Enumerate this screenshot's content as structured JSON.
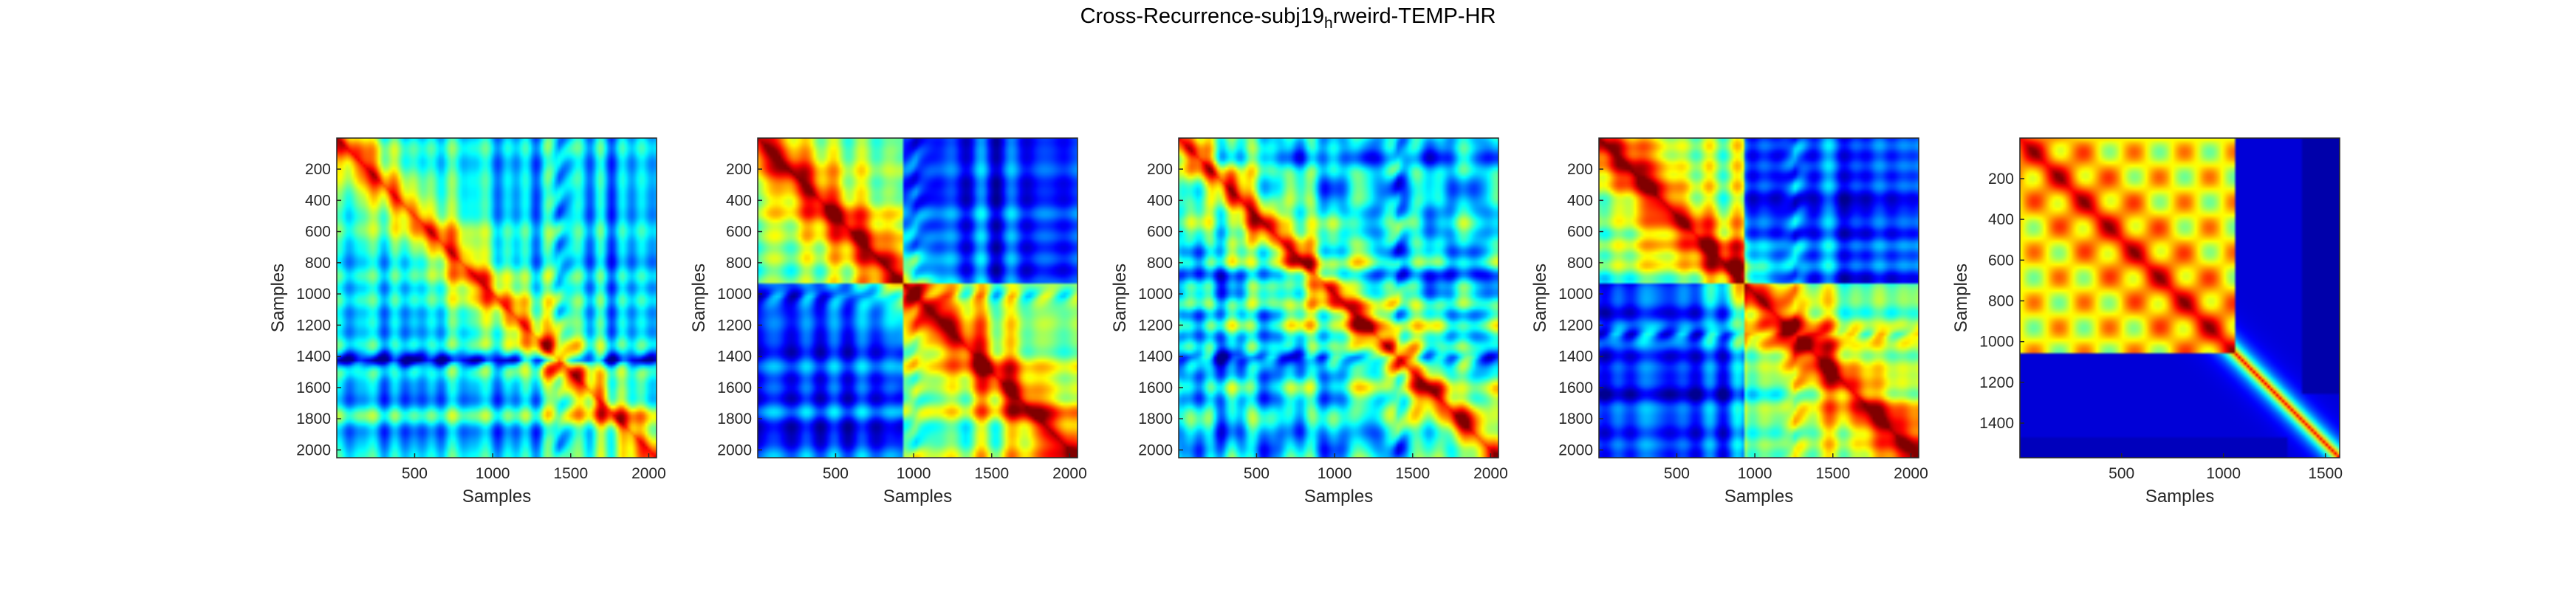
{
  "figure": {
    "title_main": "Cross-Recurrence-subj19",
    "title_sub": "h",
    "title_rest": "rweird-TEMP-HR"
  },
  "colormap": [
    "#00008f",
    "#0000ff",
    "#0080ff",
    "#00ffff",
    "#80ff80",
    "#ffff00",
    "#ff8000",
    "#ff0000",
    "#800000"
  ],
  "chart_data": [
    {
      "type": "heatmap",
      "xlabel": "Samples",
      "ylabel": "Samples",
      "xlim": [
        1,
        2050
      ],
      "ylim": [
        1,
        2050
      ],
      "xticks": [
        500,
        1000,
        1500,
        2000
      ],
      "yticks": [
        200,
        400,
        600,
        800,
        1000,
        1200,
        1400,
        1600,
        1800,
        2000
      ],
      "grid": false,
      "seed": 1,
      "center": 1420,
      "style": "banded"
    },
    {
      "type": "heatmap",
      "xlabel": "Samples",
      "ylabel": "Samples",
      "xlim": [
        1,
        2050
      ],
      "ylim": [
        1,
        2050
      ],
      "xticks": [
        500,
        1000,
        1500,
        2000
      ],
      "yticks": [
        200,
        400,
        600,
        800,
        1000,
        1200,
        1400,
        1600,
        1800,
        2000
      ],
      "grid": false,
      "seed": 2,
      "center": 1000,
      "style": "block"
    },
    {
      "type": "heatmap",
      "xlabel": "Samples",
      "ylabel": "Samples",
      "xlim": [
        1,
        2050
      ],
      "ylim": [
        1,
        2050
      ],
      "xticks": [
        500,
        1000,
        1500,
        2000
      ],
      "yticks": [
        200,
        400,
        600,
        800,
        1000,
        1200,
        1400,
        1600,
        1800,
        2000
      ],
      "grid": false,
      "seed": 3,
      "center": 1400,
      "style": "checker"
    },
    {
      "type": "heatmap",
      "xlabel": "Samples",
      "ylabel": "Samples",
      "xlim": [
        1,
        2050
      ],
      "ylim": [
        1,
        2050
      ],
      "xticks": [
        500,
        1000,
        1500,
        2000
      ],
      "yticks": [
        200,
        400,
        600,
        800,
        1000,
        1200,
        1400,
        1600,
        1800,
        2000
      ],
      "grid": false,
      "seed": 4,
      "center": 1250,
      "style": "block"
    },
    {
      "type": "heatmap",
      "xlabel": "Samples",
      "ylabel": "Samples",
      "xlim": [
        1,
        1570
      ],
      "ylim": [
        1,
        1570
      ],
      "xticks": [
        500,
        1000,
        1500
      ],
      "yticks": [
        200,
        400,
        600,
        800,
        1000,
        1200,
        1400
      ],
      "grid": false,
      "seed": 5,
      "center": 1050,
      "style": "hot"
    }
  ]
}
